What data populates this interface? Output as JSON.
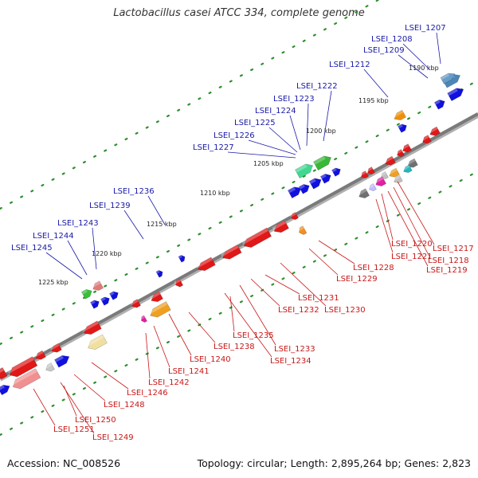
{
  "title": "Lactobacillus casei ATCC 334, complete genome",
  "footer": {
    "accession": "Accession: NC_008526",
    "summary": "Topology: circular; Length: 2,895,264 bp; Genes: 2,823"
  },
  "colors": {
    "backbone": "#7a7a7a",
    "dots": "#2f8f2f",
    "label_forward": "#1a1aa8",
    "label_reverse": "#c81818",
    "gene_forward": "#1010e0",
    "gene_reverse": "#e01818"
  },
  "ticks": [
    "1190 kbp",
    "1195 kbp",
    "1200 kbp",
    "1205 kbp",
    "1210 kbp",
    "1215 kbp",
    "1220 kbp",
    "1225 kbp"
  ],
  "genes_forward": [
    "LSEI_1207",
    "LSEI_1208",
    "LSEI_1209",
    "LSEI_1212",
    "LSEI_1222",
    "LSEI_1223",
    "LSEI_1224",
    "LSEI_1225",
    "LSEI_1226",
    "LSEI_1227",
    "LSEI_1236",
    "LSEI_1239",
    "LSEI_1243",
    "LSEI_1244",
    "LSEI_1245"
  ],
  "genes_reverse": [
    "LSEI_1217",
    "LSEI_1218",
    "LSEI_1219",
    "LSEI_1220",
    "LSEI_1221",
    "LSEI_1228",
    "LSEI_1229",
    "LSEI_1230",
    "LSEI_1231",
    "LSEI_1232",
    "LSEI_1233",
    "LSEI_1234",
    "LSEI_1235",
    "LSEI_1238",
    "LSEI_1240",
    "LSEI_1241",
    "LSEI_1242",
    "LSEI_1246",
    "LSEI_1248",
    "LSEI_1249",
    "LSEI_1250",
    "LSEI_1251"
  ]
}
